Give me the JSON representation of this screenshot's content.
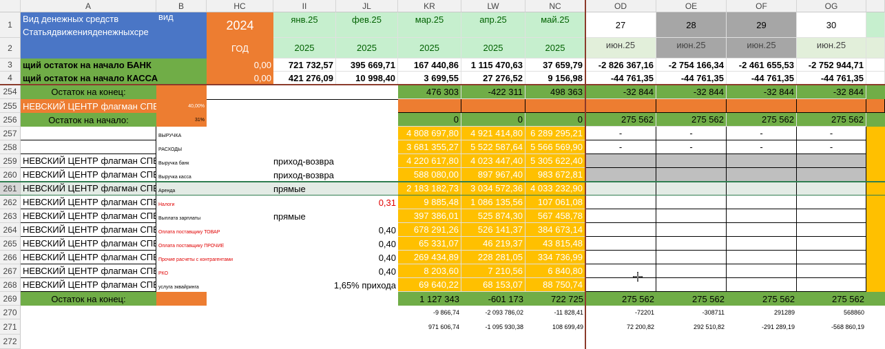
{
  "columns": [
    "A",
    "B",
    "HC",
    "II",
    "JL",
    "KR",
    "LW",
    "NC",
    "OD",
    "OE",
    "OF",
    "OG"
  ],
  "row_numbers": [
    "1",
    "2",
    "3",
    "4",
    "254",
    "255",
    "256",
    "257",
    "258",
    "259",
    "260",
    "261",
    "262",
    "263",
    "264",
    "265",
    "266",
    "267",
    "268",
    "269",
    "270",
    "271",
    "272"
  ],
  "r1": {
    "a": "Вид денежных средств",
    "a2": "Статьядвиженияденежныхсре",
    "b": "вид",
    "hc": "2024",
    "months": [
      "янв.25",
      "фев.25",
      "мар.25",
      "апр.25",
      "май.25"
    ],
    "days": [
      "27",
      "28",
      "29",
      "30"
    ]
  },
  "r2": {
    "hc": "ГОД",
    "years": [
      "2025",
      "2025",
      "2025",
      "2025",
      "2025"
    ],
    "od": [
      "июн.25",
      "июн.25",
      "июн.25",
      "июн.25"
    ]
  },
  "r3": {
    "label": "щий остаток на начало БАНК",
    "hc": "0,00",
    "vals": [
      "721 732,57",
      "395 669,71",
      "167 440,86",
      "1 115 470,63",
      "37 659,79",
      "-2 826 367,16",
      "-2 754 166,34",
      "-2 461 655,53",
      "-2 752 944,71"
    ]
  },
  "r4": {
    "label": "щий остаток на начало КАССА",
    "hc": "0,00",
    "vals": [
      "421 276,09",
      "10 998,40",
      "3 699,55",
      "27 276,52",
      "9 156,98",
      "-44 761,35",
      "-44 761,35",
      "-44 761,35",
      "-44 761,35"
    ]
  },
  "r254": {
    "label": "Остаток на конец:",
    "vals": [
      "476 303",
      "-422 311",
      "498 363",
      "-32 844",
      "-32 844",
      "-32 844",
      "-32 844"
    ]
  },
  "r255": {
    "label": "НЕВСКИЙ ЦЕНТР флагман СПБ",
    "b": "40,00%"
  },
  "r256": {
    "label": "Остаток на начало:",
    "b": "31%",
    "vals": [
      "0",
      "0",
      "0",
      "275 562",
      "275 562",
      "275 562",
      "275 562"
    ]
  },
  "rows": [
    {
      "a": "",
      "b": "ВЫРУЧКА",
      "bc": "",
      "hc": "",
      "vals": [
        "4 808 697,80",
        "4 921 414,80",
        "6 289 295,21"
      ],
      "od": [
        "-",
        "-",
        "-",
        "-"
      ]
    },
    {
      "a": "",
      "b": "РАСХОДЫ",
      "bc": "",
      "hc": "",
      "vals": [
        "3 681 355,27",
        "5 522 587,64",
        "5 566 569,90"
      ],
      "od": [
        "-",
        "-",
        "-",
        "-"
      ]
    },
    {
      "a": "НЕВСКИЙ ЦЕНТР флагман СПБ",
      "b": "Выручка банк",
      "bc": "",
      "hc": "приход-возвра",
      "vals": [
        "4 220 617,80",
        "4 023 447,40",
        "5 305 622,40"
      ],
      "od": [
        "",
        "",
        "",
        ""
      ]
    },
    {
      "a": "НЕВСКИЙ ЦЕНТР флагман СПБ",
      "b": "Выручка касса",
      "bc": "",
      "hc": "приход-возвра",
      "vals": [
        "588 080,00",
        "897 967,40",
        "983 672,81"
      ],
      "od": [
        "",
        "",
        "",
        ""
      ]
    },
    {
      "a": "НЕВСКИЙ ЦЕНТР флагман СПБ",
      "b": "Аренда",
      "bc": "",
      "hc": "прямые",
      "vals": [
        "2 183 182,73",
        "3 034 572,36",
        "4 033 232,90"
      ],
      "od": [
        "",
        "",
        "",
        ""
      ]
    },
    {
      "a": "НЕВСКИЙ ЦЕНТР флагман СПБ",
      "b": "Налоги",
      "bc": "red",
      "hc": "0,31",
      "vals": [
        "9 885,48",
        "1 086 135,56",
        "107 061,08"
      ],
      "od": [
        "",
        "",
        "",
        ""
      ]
    },
    {
      "a": "НЕВСКИЙ ЦЕНТР флагман СПБ",
      "b": "Выплата зарплаты",
      "bc": "",
      "hc": "прямые",
      "vals": [
        "397 386,01",
        "525 874,30",
        "567 458,78"
      ],
      "od": [
        "",
        "",
        "",
        ""
      ]
    },
    {
      "a": "НЕВСКИЙ ЦЕНТР флагман СПБ",
      "b": "Оплата поставщику ТОВАР",
      "bc": "red",
      "hc": "0,40",
      "vals": [
        "678 291,26",
        "526 141,37",
        "384 673,14"
      ],
      "od": [
        "",
        "",
        "",
        ""
      ]
    },
    {
      "a": "НЕВСКИЙ ЦЕНТР флагман СПБ",
      "b": "Оплата поставщику ПРОЧИЕ",
      "bc": "red",
      "hc": "0,40",
      "vals": [
        "65 331,07",
        "46 219,37",
        "43 815,48"
      ],
      "od": [
        "",
        "",
        "",
        ""
      ]
    },
    {
      "a": "НЕВСКИЙ ЦЕНТР флагман СПБ",
      "b": "Прочие расчеты с контрагентами",
      "bc": "red",
      "hc": "0,40",
      "vals": [
        "269 434,89",
        "228 281,05",
        "334 736,99"
      ],
      "od": [
        "",
        "",
        "",
        ""
      ]
    },
    {
      "a": "НЕВСКИЙ ЦЕНТР флагман СПБ",
      "b": "РКО",
      "bc": "red",
      "hc": "0,40",
      "vals": [
        "8 203,60",
        "7 210,56",
        "6 840,80"
      ],
      "od": [
        "",
        "",
        "",
        ""
      ]
    },
    {
      "a": "НЕВСКИЙ ЦЕНТР флагман СПБ",
      "b": "услуга эквайринга",
      "bc": "",
      "hc": "1,65% прихода",
      "vals": [
        "69 640,22",
        "68 153,07",
        "88 750,74"
      ],
      "od": [
        "",
        "",
        "",
        ""
      ]
    }
  ],
  "r269": {
    "label": "Остаток на конец:",
    "vals": [
      "1 127 343",
      "-601 173",
      "722 725",
      "275 562",
      "275 562",
      "275 562",
      "275 562"
    ]
  },
  "r270": {
    "vals": [
      "-9 866,74",
      "-2 093 786,02",
      "-11 828,41",
      "-72201",
      "-308711",
      "291289",
      "568860"
    ]
  },
  "r271": {
    "vals": [
      "971 606,74",
      "-1 095 930,38",
      "108 699,49",
      "72 200,82",
      "292 510,82",
      "-291 289,19",
      "-568 860,19"
    ]
  }
}
